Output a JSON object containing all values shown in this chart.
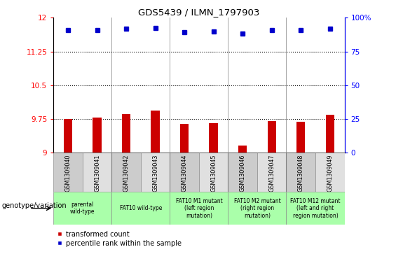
{
  "title": "GDS5439 / ILMN_1797903",
  "samples": [
    "GSM1309040",
    "GSM1309041",
    "GSM1309042",
    "GSM1309043",
    "GSM1309044",
    "GSM1309045",
    "GSM1309046",
    "GSM1309047",
    "GSM1309048",
    "GSM1309049"
  ],
  "red_values": [
    9.75,
    9.77,
    9.86,
    9.93,
    9.63,
    9.65,
    9.16,
    9.7,
    9.68,
    9.84
  ],
  "blue_values": [
    11.72,
    11.72,
    11.75,
    11.78,
    11.68,
    11.7,
    11.65,
    11.72,
    11.72,
    11.76
  ],
  "ylim_left": [
    9,
    12
  ],
  "ylim_right": [
    0,
    100
  ],
  "yticks_left": [
    9,
    9.75,
    10.5,
    11.25,
    12
  ],
  "yticks_right": [
    0,
    25,
    50,
    75,
    100
  ],
  "ytick_labels_left": [
    "9",
    "9.75",
    "10.5",
    "11.25",
    "12"
  ],
  "ytick_labels_right": [
    "0",
    "25",
    "50",
    "75",
    "100%"
  ],
  "hlines": [
    9.75,
    10.5,
    11.25
  ],
  "bar_color": "#CC0000",
  "dot_color": "#0000CC",
  "bar_width": 0.3,
  "group_xranges": [
    [
      -0.5,
      1.5
    ],
    [
      1.5,
      3.5
    ],
    [
      3.5,
      5.5
    ],
    [
      5.5,
      7.5
    ],
    [
      7.5,
      9.5
    ]
  ],
  "group_labels": [
    "parental\nwild-type",
    "FAT10 wild-type",
    "FAT10 M1 mutant\n(left region\nmutation)",
    "FAT10 M2 mutant\n(right region\nmutation)",
    "FAT10 M12 mutant\n(left and right\nregion mutation)"
  ],
  "group_color": "#aaffaa",
  "col_colors": [
    "#cccccc",
    "#e0e0e0",
    "#cccccc",
    "#e0e0e0",
    "#cccccc",
    "#e0e0e0",
    "#cccccc",
    "#e0e0e0",
    "#cccccc",
    "#e0e0e0"
  ],
  "legend_red": "transformed count",
  "legend_blue": "percentile rank within the sample",
  "genotype_label": "genotype/variation"
}
